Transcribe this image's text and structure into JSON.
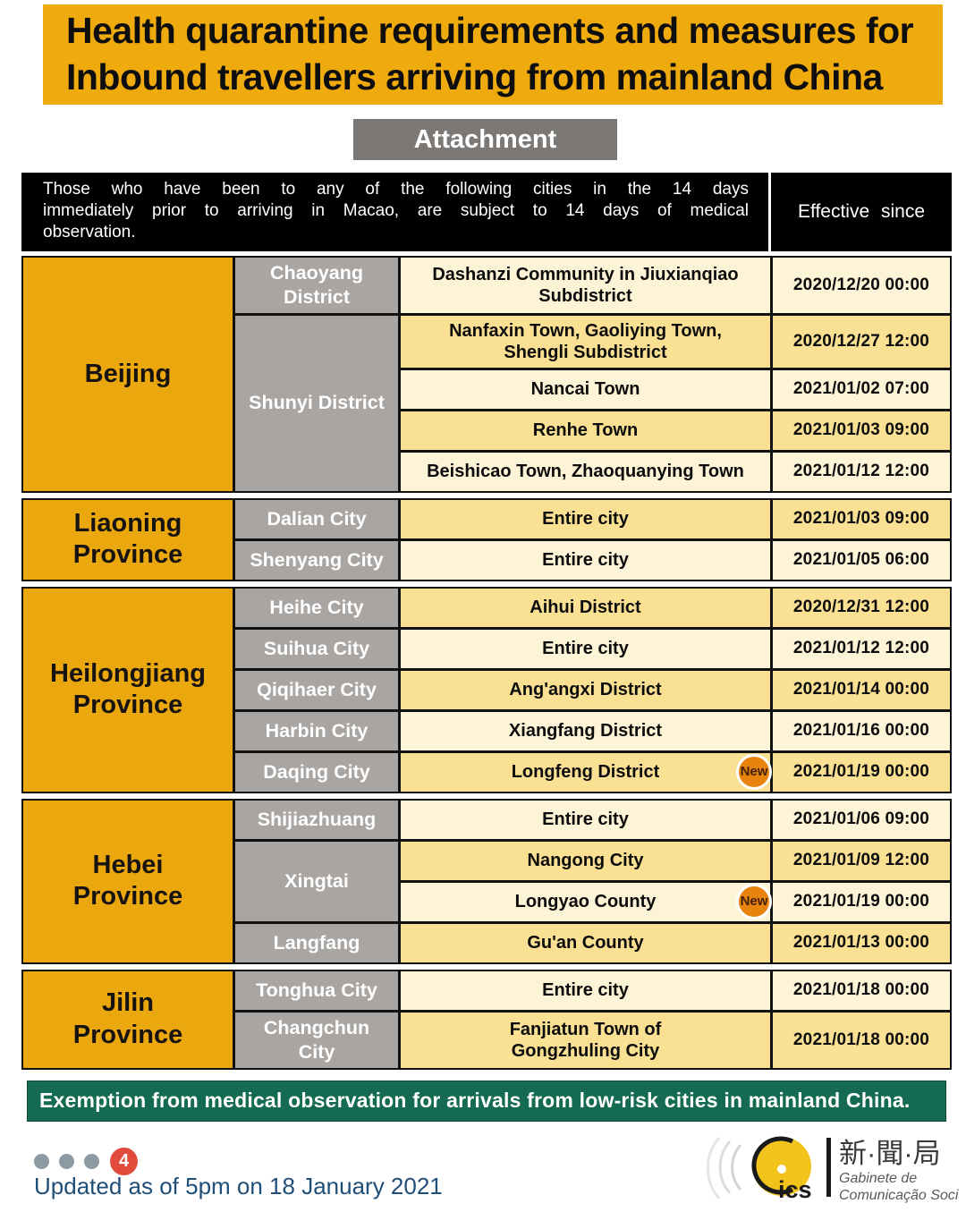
{
  "header": {
    "title_line1": "Health quarantine requirements and measures for",
    "title_line2": "Inbound travellers arriving from mainland China",
    "attachment_label": "Attachment"
  },
  "table": {
    "intro_text": "Those who have been to any of the following cities in the 14 days\nimmediately prior to arriving in Macao, are subject to 14 days of medical\nobservation.",
    "effective_since_header": "Effective since",
    "new_badge_label": "New",
    "sections": [
      {
        "province": "Beijing",
        "groups": [
          {
            "district": "Chaoyang\nDistrict",
            "rows": [
              {
                "area": "Dashanzi Community in Jiuxianqiao\nSubdistrict",
                "effective": "2020/12/20 00:00",
                "shade": "light",
                "new": false
              }
            ]
          },
          {
            "district": "Shunyi District",
            "rows": [
              {
                "area": "Nanfaxin Town, Gaoliying Town,\nShengli Subdistrict",
                "effective": "2020/12/27 12:00",
                "shade": "dark",
                "new": false
              },
              {
                "area": "Nancai Town",
                "effective": "2021/01/02 07:00",
                "shade": "light",
                "new": false
              },
              {
                "area": "Renhe Town",
                "effective": "2021/01/03 09:00",
                "shade": "dark",
                "new": false
              },
              {
                "area": "Beishicao Town, Zhaoquanying Town",
                "effective": "2021/01/12 12:00",
                "shade": "light",
                "new": false
              }
            ]
          }
        ]
      },
      {
        "province": "Liaoning\nProvince",
        "groups": [
          {
            "district": "Dalian City",
            "rows": [
              {
                "area": "Entire city",
                "effective": "2021/01/03 09:00",
                "shade": "dark",
                "new": false
              }
            ]
          },
          {
            "district": "Shenyang City",
            "rows": [
              {
                "area": "Entire city",
                "effective": "2021/01/05 06:00",
                "shade": "light",
                "new": false
              }
            ]
          }
        ]
      },
      {
        "province": "Heilongjiang\nProvince",
        "groups": [
          {
            "district": "Heihe City",
            "rows": [
              {
                "area": "Aihui District",
                "effective": "2020/12/31 12:00",
                "shade": "dark",
                "new": false
              }
            ]
          },
          {
            "district": "Suihua City",
            "rows": [
              {
                "area": "Entire city",
                "effective": "2021/01/12 12:00",
                "shade": "light",
                "new": false
              }
            ]
          },
          {
            "district": "Qiqihaer City",
            "rows": [
              {
                "area": "Ang'angxi District",
                "effective": "2021/01/14 00:00",
                "shade": "dark",
                "new": false
              }
            ]
          },
          {
            "district": "Harbin City",
            "rows": [
              {
                "area": "Xiangfang District",
                "effective": "2021/01/16 00:00",
                "shade": "light",
                "new": false
              }
            ]
          },
          {
            "district": "Daqing City",
            "rows": [
              {
                "area": "Longfeng District",
                "effective": "2021/01/19 00:00",
                "shade": "dark",
                "new": true
              }
            ]
          }
        ]
      },
      {
        "province": "Hebei\nProvince",
        "groups": [
          {
            "district": "Shijiazhuang",
            "rows": [
              {
                "area": "Entire city",
                "effective": "2021/01/06 09:00",
                "shade": "light",
                "new": false
              }
            ]
          },
          {
            "district": "Xingtai",
            "rows": [
              {
                "area": "Nangong City",
                "effective": "2021/01/09 12:00",
                "shade": "dark",
                "new": false
              },
              {
                "area": "Longyao County",
                "effective": "2021/01/19 00:00",
                "shade": "light",
                "new": true
              }
            ]
          },
          {
            "district": "Langfang",
            "rows": [
              {
                "area": "Gu'an County",
                "effective": "2021/01/13 00:00",
                "shade": "dark",
                "new": false
              }
            ]
          }
        ]
      },
      {
        "province": "Jilin\nProvince",
        "groups": [
          {
            "district": "Tonghua City",
            "rows": [
              {
                "area": "Entire city",
                "effective": "2021/01/18 00:00",
                "shade": "light",
                "new": false
              }
            ]
          },
          {
            "district": "Changchun\nCity",
            "rows": [
              {
                "area": "Fanjiatun Town of\nGongzhuling City",
                "effective": "2021/01/18 00:00",
                "shade": "dark",
                "new": false
              }
            ]
          }
        ]
      }
    ]
  },
  "exemption_banner": "Exemption from medical observation for arrivals from low-risk cities in mainland China.",
  "footer": {
    "page_indicator": {
      "dots": 3,
      "page_number": "4"
    },
    "updated_text": "Updated as of 5pm on 18 January 2021",
    "logo": {
      "acronym": "ics",
      "chinese_name": "新·聞·局",
      "name_line1": "Gabinete de",
      "name_line2": "Comunicação Social"
    }
  },
  "colors": {
    "banner_gold": "#EFAA0E",
    "province_gold": "#EBA70E",
    "district_gray": "#A9A5A2",
    "row_dark": "#FAE092",
    "row_light": "#FDF3D6",
    "header_black": "#000000",
    "attachment_gray": "#7B7875",
    "new_badge_orange": "#E8830D",
    "exemption_green": "#156B52",
    "updated_blue": "#1F4E79",
    "dot_gray": "#8C9AA2",
    "page_badge_red": "#E14B3B",
    "logo_yellow": "#F2C31B",
    "border_black": "#111111"
  }
}
